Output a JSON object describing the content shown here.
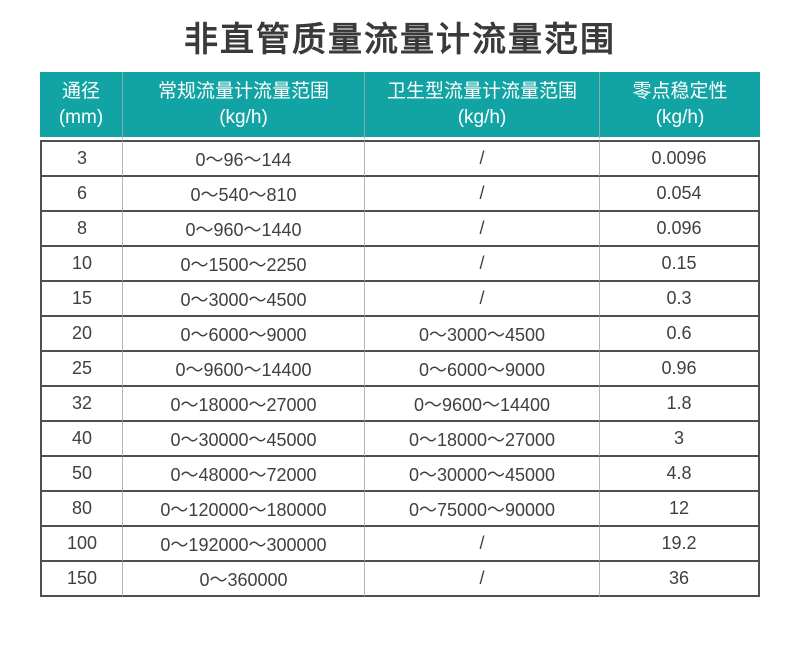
{
  "title": "非直管质量流量计流量范围",
  "colors": {
    "header_bg": "#12a4a4",
    "header_text": "#ffffff",
    "border_dark": "#4f4f4f",
    "border_light": "#b5b5b5",
    "header_separator": "#8aacac",
    "title_text": "#3a3a3a",
    "cell_text": "#404040",
    "page_bg": "#ffffff"
  },
  "table": {
    "headers": [
      {
        "line1": "通径",
        "line2": "(mm)"
      },
      {
        "line1": "常规流量计流量范围",
        "line2": "(kg/h)"
      },
      {
        "line1": "卫生型流量计流量范围",
        "line2": "(kg/h)"
      },
      {
        "line1": "零点稳定性",
        "line2": "(kg/h)"
      }
    ],
    "rows": [
      [
        "3",
        "0～96～144",
        "/",
        "0.0096"
      ],
      [
        "6",
        "0～540～810",
        "/",
        "0.054"
      ],
      [
        "8",
        "0～960～1440",
        "/",
        "0.096"
      ],
      [
        "10",
        "0～1500～2250",
        "/",
        "0.15"
      ],
      [
        "15",
        "0～3000～4500",
        "/",
        "0.3"
      ],
      [
        "20",
        "0～6000～9000",
        "0～3000～4500",
        "0.6"
      ],
      [
        "25",
        "0～9600～14400",
        "0～6000～9000",
        "0.96"
      ],
      [
        "32",
        "0～18000～27000",
        "0～9600～14400",
        "1.8"
      ],
      [
        "40",
        "0～30000～45000",
        "0～18000～27000",
        "3"
      ],
      [
        "50",
        "0～48000～72000",
        "0～30000～45000",
        "4.8"
      ],
      [
        "80",
        "0～120000～180000",
        "0～75000～90000",
        "12"
      ],
      [
        "100",
        "0～192000～300000",
        "/",
        "19.2"
      ],
      [
        "150",
        "0～360000",
        "/",
        "36"
      ]
    ]
  },
  "chart_data": {
    "type": "table",
    "title": "非直管质量流量计流量范围",
    "columns": [
      "通径(mm)",
      "常规流量计流量范围(kg/h)",
      "卫生型流量计流量范围(kg/h)",
      "零点稳定性(kg/h)"
    ],
    "rows": [
      [
        "3",
        "0～96～144",
        "/",
        "0.0096"
      ],
      [
        "6",
        "0～540～810",
        "/",
        "0.054"
      ],
      [
        "8",
        "0～960～1440",
        "/",
        "0.096"
      ],
      [
        "10",
        "0～1500～2250",
        "/",
        "0.15"
      ],
      [
        "15",
        "0～3000～4500",
        "/",
        "0.3"
      ],
      [
        "20",
        "0～6000～9000",
        "0～3000～4500",
        "0.6"
      ],
      [
        "25",
        "0～9600～14400",
        "0～6000～9000",
        "0.96"
      ],
      [
        "32",
        "0～18000～27000",
        "0～9600～14400",
        "1.8"
      ],
      [
        "40",
        "0～30000～45000",
        "0～18000～27000",
        "3"
      ],
      [
        "50",
        "0～48000～72000",
        "0～30000～45000",
        "4.8"
      ],
      [
        "80",
        "0～120000～180000",
        "0～75000～90000",
        "12"
      ],
      [
        "100",
        "0～192000～300000",
        "/",
        "19.2"
      ],
      [
        "150",
        "0～360000",
        "/",
        "36"
      ]
    ]
  }
}
